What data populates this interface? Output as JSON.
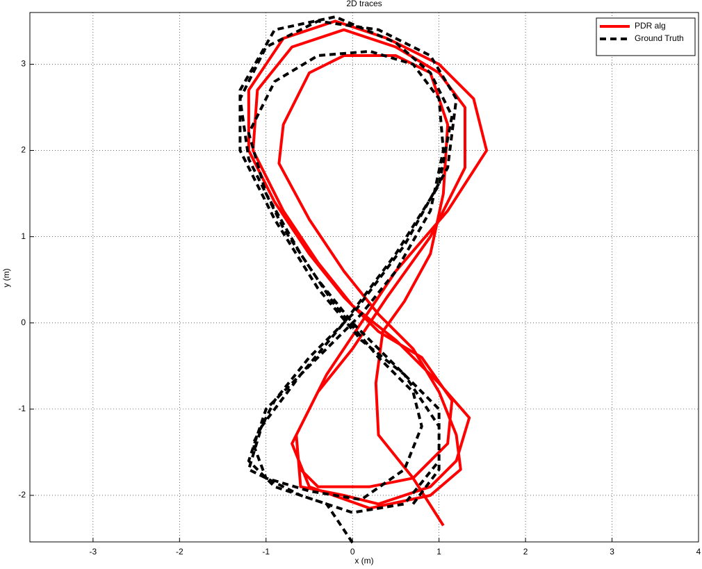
{
  "chart_data": {
    "type": "line",
    "title": "2D traces",
    "xlabel": "x (m)",
    "ylabel": "y (m)",
    "xlim": [
      -3.73,
      4
    ],
    "ylim": [
      -2.54,
      3.6
    ],
    "xticks": [
      -3,
      -2,
      -1,
      0,
      1,
      2,
      3,
      4
    ],
    "yticks": [
      -2,
      -1,
      0,
      1,
      2,
      3
    ],
    "grid": true,
    "legend": "northeast",
    "series": [
      {
        "name": "PDR alg",
        "color": "#ff0000",
        "line_style": "solid",
        "x": [
          1.05,
          0.7,
          0.3,
          0.27,
          0.35,
          0.6,
          0.9,
          1.05,
          1.1,
          0.9,
          0.5,
          -0.1,
          -0.5,
          -0.8,
          -0.85,
          -0.5,
          -0.1,
          0.3,
          0.7,
          1.0,
          1.2,
          1.25,
          0.9,
          0.2,
          -0.5,
          -0.7,
          -0.4,
          0,
          0.4,
          0.9,
          1.3,
          1.3,
          1.0,
          0.5,
          -0.1,
          -0.7,
          -1.1,
          -1.15,
          -0.8,
          -0.4,
          0,
          0.5,
          1.0,
          1.35,
          1.2,
          0.9,
          0.3,
          -0.1,
          -0.6,
          -0.65,
          -0.3,
          0.1,
          0.5,
          1.1,
          1.55,
          1.4,
          1.0,
          0.4,
          -0.2,
          -0.8,
          -1.2,
          -1.2,
          -0.9,
          -0.5,
          -0.1,
          0.3,
          0.8,
          1.15,
          1.1,
          0.7,
          0.2,
          -0.4,
          -0.6
        ],
        "values": [
          -2.35,
          -1.8,
          -1.3,
          -0.7,
          -0.1,
          0.25,
          0.8,
          1.5,
          2.3,
          2.9,
          3.1,
          3.1,
          2.9,
          2.3,
          1.85,
          1.2,
          0.6,
          0.1,
          -0.3,
          -0.8,
          -1.3,
          -1.7,
          -2.0,
          -2.15,
          -1.9,
          -1.4,
          -0.8,
          -0.3,
          0.3,
          1.0,
          1.8,
          2.5,
          2.9,
          3.2,
          3.4,
          3.2,
          2.7,
          2.0,
          1.3,
          0.7,
          0.2,
          -0.2,
          -0.7,
          -1.1,
          -1.6,
          -1.9,
          -2.1,
          -2.0,
          -1.9,
          -1.3,
          -0.6,
          0,
          0.6,
          1.3,
          2.0,
          2.6,
          3.0,
          3.3,
          3.5,
          3.3,
          2.7,
          2.0,
          1.4,
          0.8,
          0.3,
          -0.1,
          -0.4,
          -0.9,
          -1.4,
          -1.8,
          -1.9,
          -1.9,
          -1.7
        ]
      },
      {
        "name": "Ground Truth",
        "color": "#000000",
        "line_style": "dashed",
        "x": [
          0,
          -0.3,
          -0.9,
          -1.2,
          -1.0,
          -0.6,
          -0.2,
          0.1,
          0.5,
          0.9,
          1.05,
          1.0,
          0.7,
          0.2,
          -0.4,
          -0.9,
          -1.2,
          -1.0,
          -0.6,
          -0.2,
          0.3,
          0.7,
          0.8,
          0.6,
          0.1,
          -0.5,
          -1.0,
          -1.15,
          -0.9,
          -0.5,
          0,
          0.6,
          1.1,
          1.2,
          0.9,
          0.3,
          -0.4,
          -1.0,
          -1.3,
          -1.2,
          -0.8,
          -0.4,
          0,
          0.5,
          1.0,
          1.0,
          0.6,
          0.0,
          -0.6,
          -1.2,
          -1.05,
          -0.6,
          -0.1,
          0.5,
          1.0,
          1.15,
          0.9,
          0.5,
          -0.2,
          -0.9,
          -1.3,
          -1.3,
          -0.9,
          -0.4,
          0.1,
          0.6,
          1.0,
          1.0,
          0.7
        ],
        "values": [
          -2.55,
          -2.1,
          -1.9,
          -1.6,
          -1.0,
          -0.6,
          -0.2,
          0.1,
          0.6,
          1.3,
          2.0,
          2.6,
          3.0,
          3.15,
          3.1,
          2.8,
          2.2,
          1.5,
          0.8,
          0.2,
          -0.4,
          -0.8,
          -1.2,
          -1.7,
          -2.05,
          -1.95,
          -1.8,
          -1.4,
          -0.9,
          -0.4,
          0.1,
          0.9,
          1.8,
          2.6,
          3.1,
          3.4,
          3.5,
          3.2,
          2.6,
          1.9,
          1.1,
          0.5,
          0,
          -0.5,
          -1.0,
          -1.6,
          -2.1,
          -2.2,
          -2.0,
          -1.7,
          -1.2,
          -0.6,
          0,
          0.8,
          1.6,
          2.4,
          2.9,
          3.25,
          3.55,
          3.4,
          2.7,
          2.0,
          1.2,
          0.4,
          -0.2,
          -0.6,
          -1.2,
          -1.7,
          -2.1
        ]
      }
    ]
  }
}
